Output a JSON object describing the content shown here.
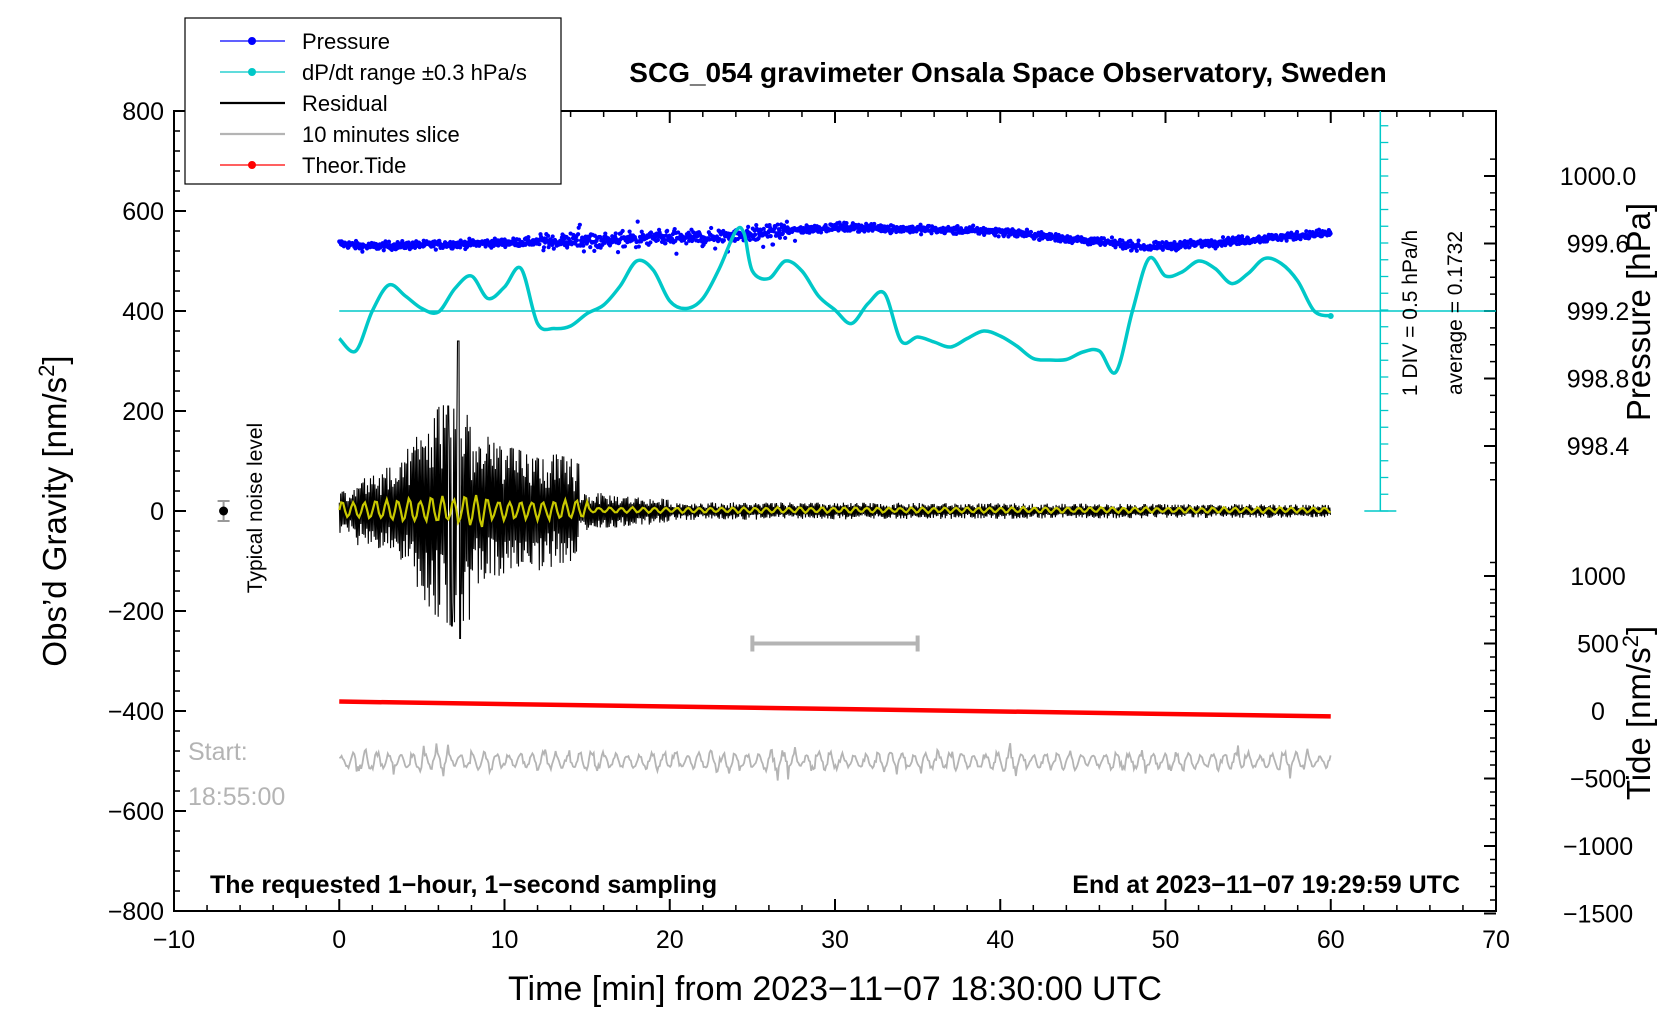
{
  "chart_data": {
    "type": "line",
    "title": "SCG_054 gravimeter Onsala Space Observatory, Sweden",
    "xlabel": "Time [min] from 2023−11−07 18:30:00 UTC",
    "ylabel_left": "Obs’d Gravity [nm/s",
    "ylabel_left_sup": "2",
    "ylabel_left_close": "]",
    "ylabel_pressure": "Pressure [hPa]",
    "ylabel_tide": "Tide [nm/s",
    "ylabel_tide_sup": "2",
    "ylabel_tide_close": "]",
    "xlim": [
      -10,
      70
    ],
    "ylim": [
      -800,
      800
    ],
    "x_ticks": [
      "−10",
      "0",
      "10",
      "20",
      "30",
      "40",
      "50",
      "60",
      "70"
    ],
    "y_ticks": [
      "800",
      "600",
      "400",
      "200",
      "0",
      "−200",
      "−400",
      "−600",
      "−800"
    ],
    "pressure_ticks": [
      "1000.0",
      "999.6",
      "999.2",
      "998.8",
      "998.4"
    ],
    "tide_ticks": [
      "1000",
      "500",
      "0",
      "−500",
      "−1000",
      "−1500"
    ],
    "legend": [
      {
        "label": "Pressure",
        "color": "#0000ff",
        "marker": true
      },
      {
        "label": "dP/dt range ±0.3 hPa/s",
        "color": "#00c8c8",
        "marker": true
      },
      {
        "label": "Residual",
        "color": "#000000",
        "marker": false
      },
      {
        "label": "10 minutes slice",
        "color": "#b4b4b4",
        "marker": false
      },
      {
        "label": "Theor.Tide",
        "color": "#ff0000",
        "marker": true
      }
    ],
    "series": [
      {
        "name": "Pressure",
        "units": "hPa",
        "approx_mean_start": 999.58,
        "approx_mean_mid": 999.68,
        "approx_mean_end": 999.64
      },
      {
        "name": "dP/dt",
        "reference_line_gravity_units": 400,
        "x": [
          0,
          1,
          2,
          3,
          4,
          5,
          6,
          7,
          8,
          9,
          10,
          11,
          12,
          13,
          14,
          15,
          16,
          17,
          18,
          19,
          20,
          21,
          22,
          23,
          24,
          24.5,
          25,
          26,
          27,
          28,
          29,
          30,
          31,
          32,
          33,
          34,
          35,
          36,
          37,
          38,
          39,
          40,
          41,
          42,
          43,
          44,
          45,
          46,
          47,
          48,
          49,
          50,
          51,
          52,
          53,
          54,
          55,
          56,
          57,
          58,
          59,
          60
        ],
        "y": [
          345,
          320,
          400,
          452,
          430,
          405,
          398,
          445,
          470,
          425,
          448,
          485,
          375,
          365,
          370,
          395,
          412,
          450,
          500,
          482,
          420,
          405,
          425,
          485,
          560,
          555,
          480,
          465,
          500,
          480,
          430,
          402,
          375,
          415,
          435,
          340,
          348,
          338,
          328,
          345,
          360,
          350,
          330,
          305,
          302,
          303,
          318,
          320,
          278,
          400,
          505,
          470,
          478,
          500,
          485,
          455,
          475,
          505,
          495,
          460,
          400,
          390
        ]
      },
      {
        "name": "Residual",
        "peak_max": 340,
        "peak_min": -255,
        "peak_time_min": 7.2
      },
      {
        "name": "10 minutes slice",
        "x_start": 25,
        "x_end": 35,
        "y": -265
      },
      {
        "name": "Theor.Tide",
        "units": "nm/s^2",
        "x": [
          0,
          60
        ],
        "y": [
          70,
          -40
        ]
      }
    ],
    "right_axis_annotation_1": "1 DIV = 0.5 hPa/h",
    "right_axis_annotation_2": "average = 0.1732",
    "noise_label": "Typical noise level",
    "noise_x": -7,
    "noise_y": 0,
    "noise_err": 20,
    "start_label": "Start:",
    "start_time": "18:55:00",
    "footer_left": "The requested 1−hour, 1−second sampling",
    "footer_right": "End at 2023−11−07 19:29:59 UTC"
  }
}
